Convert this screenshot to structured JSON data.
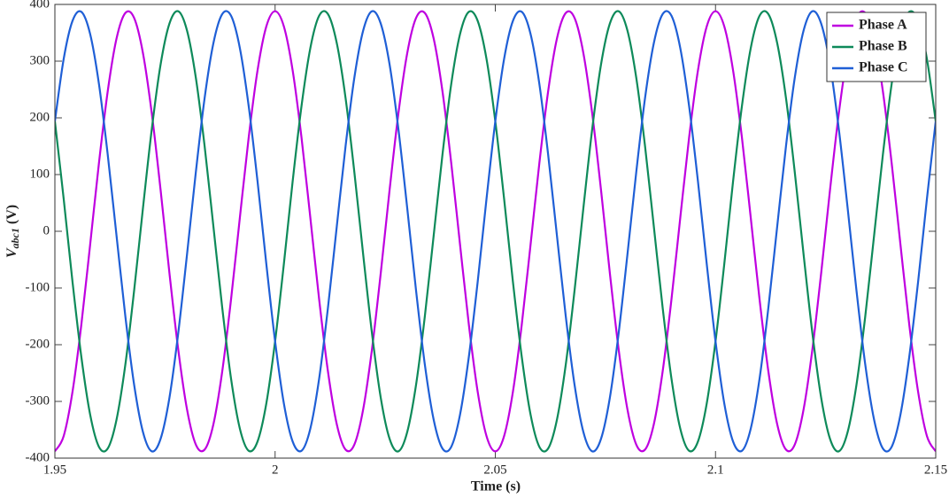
{
  "chart_data": {
    "type": "line",
    "xlabel": "Time (s)",
    "ylabel": {
      "main": "V",
      "sub": "abc1",
      "unit": "(V)"
    },
    "xlim": [
      1.95,
      2.15
    ],
    "xticks": [
      1.95,
      2,
      2.05,
      2.1,
      2.15
    ],
    "ylim": [
      -400,
      400
    ],
    "yticks": [
      -400,
      -300,
      -200,
      -100,
      0,
      100,
      200,
      300,
      400
    ],
    "legend": "top-right",
    "x": [
      1.95,
      1.952,
      1.954,
      1.956,
      1.958,
      1.96,
      1.962,
      1.964,
      1.966,
      1.968,
      1.97,
      1.972,
      1.974,
      1.976,
      1.978,
      1.98,
      1.982,
      1.984,
      1.986,
      1.988,
      1.99,
      1.992,
      1.994,
      1.996,
      1.998,
      2,
      2.002,
      2.004,
      2.006,
      2.008,
      2.01,
      2.012,
      2.014,
      2.016,
      2.018,
      2.02,
      2.022,
      2.024,
      2.026,
      2.028,
      2.03,
      2.032,
      2.034,
      2.036,
      2.038,
      2.04,
      2.042,
      2.044,
      2.046,
      2.048,
      2.05,
      2.052,
      2.054,
      2.056,
      2.058,
      2.06,
      2.062,
      2.064,
      2.066,
      2.068,
      2.07,
      2.072,
      2.074,
      2.076,
      2.078,
      2.08,
      2.082,
      2.084,
      2.086,
      2.088,
      2.09,
      2.092,
      2.094,
      2.096,
      2.098,
      2.1,
      2.102,
      2.104,
      2.106,
      2.108,
      2.11,
      2.112,
      2.114,
      2.116,
      2.118,
      2.12,
      2.122,
      2.124,
      2.126,
      2.128,
      2.13,
      2.132,
      2.134,
      2.136,
      2.138,
      2.14,
      2.142,
      2.144,
      2.146,
      2.148,
      2.15
    ],
    "series": [
      {
        "name": "Phase A",
        "color": "#bf00e0",
        "values": [
          -388,
          -361,
          -283,
          -165,
          -24,
          120,
          247,
          340,
          385,
          376,
          314,
          208,
          73,
          -73,
          -208,
          -314,
          -376,
          -385,
          -340,
          -247,
          -120,
          24,
          165,
          283,
          361,
          388,
          361,
          283,
          165,
          24,
          -120,
          -247,
          -340,
          -385,
          -376,
          -314,
          -208,
          -73,
          73,
          208,
          314,
          376,
          385,
          340,
          247,
          120,
          -24,
          -165,
          -283,
          -361,
          -388,
          -361,
          -283,
          -165,
          -24,
          120,
          247,
          340,
          385,
          376,
          314,
          208,
          73,
          -73,
          -208,
          -314,
          -376,
          -385,
          -340,
          -247,
          -120,
          24,
          165,
          283,
          361,
          388,
          361,
          283,
          165,
          24,
          -120,
          -247,
          -340,
          -385,
          -376,
          -314,
          -208,
          -73,
          73,
          208,
          314,
          376,
          385,
          340,
          247,
          120,
          -24,
          -165,
          -283,
          -361,
          -388
        ]
      },
      {
        "name": "Phase B",
        "color": "#0e8a5a",
        "values": [
          194,
          57,
          -89,
          -221,
          -323,
          -380,
          -383,
          -332,
          -235,
          -104,
          41,
          180,
          294,
          366,
          388,
          354,
          271,
          150,
          8,
          -135,
          -260,
          -348,
          -387,
          -371,
          -304,
          -194,
          -57,
          89,
          221,
          323,
          380,
          383,
          332,
          235,
          104,
          -41,
          -180,
          -294,
          -366,
          -388,
          -354,
          -271,
          -150,
          -8,
          135,
          260,
          348,
          387,
          371,
          304,
          194,
          57,
          -89,
          -221,
          -323,
          -380,
          -383,
          -332,
          -235,
          -104,
          41,
          180,
          294,
          366,
          388,
          354,
          271,
          150,
          8,
          -135,
          -260,
          -348,
          -387,
          -371,
          -304,
          -194,
          -57,
          89,
          221,
          323,
          380,
          383,
          332,
          235,
          104,
          -41,
          -180,
          -294,
          -366,
          -388,
          -354,
          -271,
          -150,
          -8,
          135,
          260,
          348,
          387,
          371,
          304,
          194
        ]
      },
      {
        "name": "Phase C",
        "color": "#1f5fd6",
        "values": [
          194,
          304,
          371,
          387,
          348,
          260,
          135,
          -8,
          -150,
          -271,
          -354,
          -388,
          -366,
          -294,
          -180,
          -41,
          104,
          235,
          332,
          383,
          380,
          323,
          221,
          89,
          -57,
          -194,
          -304,
          -371,
          -387,
          -348,
          -260,
          -135,
          8,
          150,
          271,
          354,
          388,
          366,
          294,
          180,
          41,
          -104,
          -235,
          -332,
          -383,
          -380,
          -323,
          -221,
          -89,
          57,
          194,
          304,
          371,
          387,
          348,
          260,
          135,
          -8,
          -150,
          -271,
          -354,
          -388,
          -366,
          -294,
          -180,
          -41,
          104,
          235,
          332,
          383,
          380,
          323,
          221,
          89,
          -57,
          -194,
          -304,
          -371,
          -387,
          -348,
          -260,
          -135,
          8,
          150,
          271,
          354,
          388,
          366,
          294,
          180,
          41,
          -104,
          -235,
          -332,
          -383,
          -380,
          -323,
          -221,
          -89,
          57,
          194
        ]
      }
    ]
  }
}
